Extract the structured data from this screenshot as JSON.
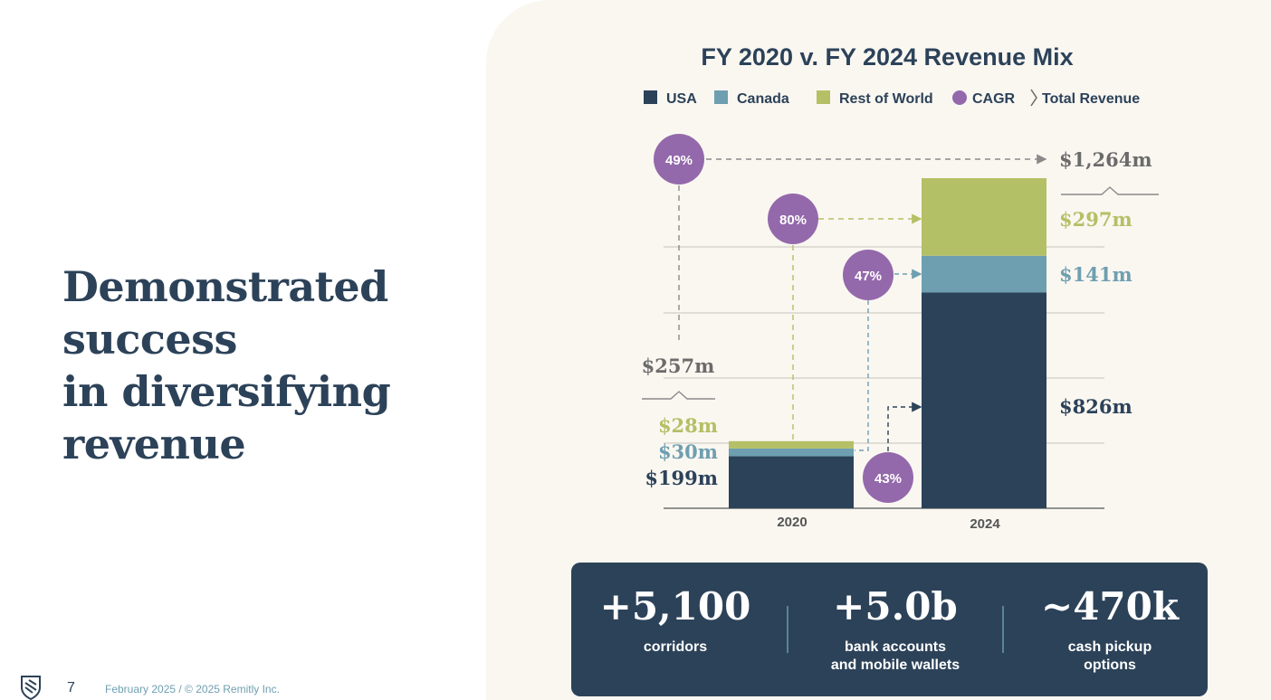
{
  "headline": {
    "lines": [
      "Demonstrated",
      "success",
      "in diversifying",
      "revenue"
    ]
  },
  "footer": {
    "page_number": "7",
    "text": "February 2025 / © 2025 Remitly Inc.",
    "logo_icon": "remitly-shield-logo-icon"
  },
  "colors": {
    "usa": "#2c4259",
    "canada": "#6e9fb0",
    "rest_of_world": "#b3c065",
    "cagr": "#9469ab",
    "total": "#6b6b6b",
    "panel_bg": "#faf7f1"
  },
  "chart_data": {
    "type": "bar",
    "stacked": true,
    "title": "FY 2020 v. FY 2024 Revenue Mix",
    "legend": [
      "USA",
      "Canada",
      "Rest of World",
      "CAGR",
      "Total Revenue"
    ],
    "legend_position": "top",
    "categories": [
      "2020",
      "2024"
    ],
    "series": [
      {
        "name": "USA",
        "values": [
          199,
          826
        ],
        "labels": [
          "$199m",
          "$826m"
        ],
        "cagr": "43%"
      },
      {
        "name": "Canada",
        "values": [
          30,
          141
        ],
        "labels": [
          "$30m",
          "$141m"
        ],
        "cagr": "47%"
      },
      {
        "name": "Rest of World",
        "values": [
          28,
          297
        ],
        "labels": [
          "$28m",
          "$297m"
        ],
        "cagr": "80%"
      }
    ],
    "totals": {
      "values": [
        257,
        1264
      ],
      "labels": [
        "$257m",
        "$1,264m"
      ],
      "cagr": "49%"
    },
    "ylim": [
      0,
      1400
    ],
    "grid": true
  },
  "stats": [
    {
      "value": "+5,100",
      "label": [
        "corridors"
      ]
    },
    {
      "value": "+5.0b",
      "label": [
        "bank accounts",
        "and mobile wallets"
      ]
    },
    {
      "value": "~470k",
      "label": [
        "cash pickup",
        "options"
      ]
    }
  ]
}
